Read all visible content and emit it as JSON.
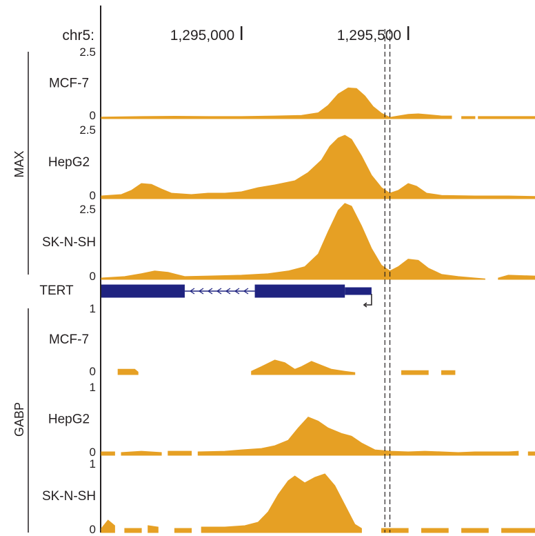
{
  "chart_data": {
    "type": "area",
    "chromosome": "chr5:",
    "coordinate_labels": [
      "1,295,000",
      "1,295,500"
    ],
    "coordinate_values": [
      1295000,
      1295500
    ],
    "x_range": [
      1294580,
      1295880
    ],
    "signal_color": "#e6a024",
    "gene_color": "#1f2380",
    "marker_lines": [
      1295430,
      1295445
    ],
    "groups": [
      {
        "name": "MAX",
        "ylim": [
          0,
          2.5
        ],
        "tracks": [
          {
            "cell_line": "MCF-7",
            "y_max_label": "2.5",
            "y_min_label": "0",
            "points": [
              [
                1294580,
                0.06
              ],
              [
                1294700,
                0.08
              ],
              [
                1294800,
                0.09
              ],
              [
                1294900,
                0.08
              ],
              [
                1295000,
                0.08
              ],
              [
                1295100,
                0.1
              ],
              [
                1295180,
                0.12
              ],
              [
                1295230,
                0.22
              ],
              [
                1295260,
                0.5
              ],
              [
                1295290,
                0.92
              ],
              [
                1295320,
                1.15
              ],
              [
                1295345,
                1.13
              ],
              [
                1295370,
                0.85
              ],
              [
                1295395,
                0.45
              ],
              [
                1295420,
                0.2
              ],
              [
                1295445,
                0.05
              ],
              [
                1295470,
                0.1
              ],
              [
                1295500,
                0.16
              ],
              [
                1295530,
                0.18
              ],
              [
                1295560,
                0.15
              ],
              [
                1295600,
                0.1
              ],
              [
                1295630,
                0.1
              ],
              [
                1295631,
                null
              ],
              [
                1295660,
                0.08
              ],
              [
                1295700,
                0.08
              ],
              [
                1295701,
                null
              ],
              [
                1295710,
                0.08
              ],
              [
                1295880,
                0.08
              ]
            ]
          },
          {
            "cell_line": "HepG2",
            "y_max_label": "2.5",
            "y_min_label": "0",
            "points": [
              [
                1294580,
                0.1
              ],
              [
                1294640,
                0.15
              ],
              [
                1294670,
                0.3
              ],
              [
                1294700,
                0.55
              ],
              [
                1294730,
                0.52
              ],
              [
                1294760,
                0.35
              ],
              [
                1294790,
                0.2
              ],
              [
                1294850,
                0.15
              ],
              [
                1294900,
                0.2
              ],
              [
                1294950,
                0.2
              ],
              [
                1295000,
                0.25
              ],
              [
                1295050,
                0.4
              ],
              [
                1295100,
                0.5
              ],
              [
                1295160,
                0.65
              ],
              [
                1295200,
                0.95
              ],
              [
                1295240,
                1.4
              ],
              [
                1295265,
                1.9
              ],
              [
                1295290,
                2.2
              ],
              [
                1295310,
                2.3
              ],
              [
                1295330,
                2.15
              ],
              [
                1295360,
                1.55
              ],
              [
                1295390,
                0.85
              ],
              [
                1295420,
                0.4
              ],
              [
                1295445,
                0.2
              ],
              [
                1295470,
                0.3
              ],
              [
                1295500,
                0.55
              ],
              [
                1295525,
                0.45
              ],
              [
                1295555,
                0.2
              ],
              [
                1295600,
                0.12
              ],
              [
                1295700,
                0.1
              ],
              [
                1295800,
                0.1
              ],
              [
                1295880,
                0.08
              ]
            ]
          },
          {
            "cell_line": "SK-N-SH",
            "y_max_label": "2.5",
            "y_min_label": "0",
            "points": [
              [
                1294580,
                0.05
              ],
              [
                1294650,
                0.1
              ],
              [
                1294700,
                0.2
              ],
              [
                1294740,
                0.3
              ],
              [
                1294780,
                0.25
              ],
              [
                1294830,
                0.1
              ],
              [
                1294900,
                0.12
              ],
              [
                1295000,
                0.15
              ],
              [
                1295080,
                0.2
              ],
              [
                1295140,
                0.3
              ],
              [
                1295190,
                0.45
              ],
              [
                1295230,
                0.9
              ],
              [
                1295260,
                1.7
              ],
              [
                1295290,
                2.45
              ],
              [
                1295310,
                2.7
              ],
              [
                1295330,
                2.6
              ],
              [
                1295360,
                1.9
              ],
              [
                1295390,
                1.1
              ],
              [
                1295420,
                0.5
              ],
              [
                1295445,
                0.3
              ],
              [
                1295470,
                0.45
              ],
              [
                1295500,
                0.72
              ],
              [
                1295530,
                0.68
              ],
              [
                1295560,
                0.4
              ],
              [
                1295600,
                0.18
              ],
              [
                1295650,
                0.1
              ],
              [
                1295700,
                0.05
              ],
              [
                1295730,
                0.02
              ],
              [
                1295731,
                null
              ],
              [
                1295770,
                0.05
              ],
              [
                1295800,
                0.15
              ],
              [
                1295880,
                0.12
              ]
            ]
          }
        ]
      },
      {
        "name": "GABP",
        "ylim": [
          0,
          1
        ],
        "tracks": [
          {
            "cell_line": "MCF-7",
            "y_max_label": "1",
            "y_min_label": "0",
            "points": [
              [
                1294620,
                null
              ],
              [
                1294630,
                0.08
              ],
              [
                1294680,
                0.08
              ],
              [
                1294690,
                0.04
              ],
              [
                1294691,
                null
              ],
              [
                1295030,
                0.05
              ],
              [
                1295060,
                0.12
              ],
              [
                1295100,
                0.22
              ],
              [
                1295130,
                0.18
              ],
              [
                1295160,
                0.08
              ],
              [
                1295180,
                0.12
              ],
              [
                1295210,
                0.2
              ],
              [
                1295240,
                0.14
              ],
              [
                1295270,
                0.08
              ],
              [
                1295310,
                0.05
              ],
              [
                1295340,
                0.03
              ],
              [
                1295341,
                null
              ],
              [
                1295480,
                0.06
              ],
              [
                1295560,
                0.06
              ],
              [
                1295561,
                null
              ],
              [
                1295600,
                0.06
              ],
              [
                1295640,
                0.06
              ]
            ]
          },
          {
            "cell_line": "HepG2",
            "y_max_label": "1",
            "y_min_label": "0",
            "points": [
              [
                1294580,
                0.05
              ],
              [
                1294620,
                0.05
              ],
              [
                1294621,
                null
              ],
              [
                1294640,
                0.04
              ],
              [
                1294700,
                0.06
              ],
              [
                1294760,
                0.04
              ],
              [
                1294761,
                null
              ],
              [
                1294780,
                0.06
              ],
              [
                1294850,
                0.06
              ],
              [
                1294851,
                null
              ],
              [
                1294870,
                0.05
              ],
              [
                1294950,
                0.06
              ],
              [
                1295000,
                0.08
              ],
              [
                1295060,
                0.1
              ],
              [
                1295100,
                0.14
              ],
              [
                1295140,
                0.22
              ],
              [
                1295170,
                0.4
              ],
              [
                1295200,
                0.56
              ],
              [
                1295230,
                0.5
              ],
              [
                1295260,
                0.4
              ],
              [
                1295300,
                0.32
              ],
              [
                1295330,
                0.28
              ],
              [
                1295360,
                0.18
              ],
              [
                1295400,
                0.08
              ],
              [
                1295450,
                0.06
              ],
              [
                1295500,
                0.05
              ],
              [
                1295550,
                0.06
              ],
              [
                1295600,
                0.05
              ],
              [
                1295650,
                0.04
              ],
              [
                1295700,
                0.05
              ],
              [
                1295750,
                0.05
              ],
              [
                1295800,
                0.05
              ],
              [
                1295830,
                0.06
              ],
              [
                1295831,
                null
              ],
              [
                1295860,
                0.05
              ],
              [
                1295880,
                0.05
              ]
            ]
          },
          {
            "cell_line": "SK-N-SH",
            "y_max_label": "1",
            "y_min_label": "0",
            "points": [
              [
                1294580,
                0.06
              ],
              [
                1294600,
                0.18
              ],
              [
                1294620,
                0.1
              ],
              [
                1294621,
                null
              ],
              [
                1294650,
                0.06
              ],
              [
                1294700,
                0.06
              ],
              [
                1294701,
                null
              ],
              [
                1294720,
                0.1
              ],
              [
                1294750,
                0.08
              ],
              [
                1294751,
                null
              ],
              [
                1294800,
                0.06
              ],
              [
                1294850,
                0.06
              ],
              [
                1294851,
                null
              ],
              [
                1294880,
                0.08
              ],
              [
                1294950,
                0.08
              ],
              [
                1295010,
                0.1
              ],
              [
                1295050,
                0.15
              ],
              [
                1295080,
                0.3
              ],
              [
                1295110,
                0.55
              ],
              [
                1295140,
                0.75
              ],
              [
                1295160,
                0.82
              ],
              [
                1295190,
                0.72
              ],
              [
                1295220,
                0.8
              ],
              [
                1295250,
                0.85
              ],
              [
                1295280,
                0.68
              ],
              [
                1295310,
                0.4
              ],
              [
                1295340,
                0.12
              ],
              [
                1295360,
                0.06
              ],
              [
                1295361,
                null
              ],
              [
                1295420,
                0.06
              ],
              [
                1295500,
                0.06
              ],
              [
                1295501,
                null
              ],
              [
                1295540,
                0.06
              ],
              [
                1295620,
                0.06
              ],
              [
                1295621,
                null
              ],
              [
                1295660,
                0.06
              ],
              [
                1295740,
                0.06
              ],
              [
                1295741,
                null
              ],
              [
                1295780,
                0.06
              ],
              [
                1295880,
                0.06
              ]
            ]
          }
        ]
      }
    ],
    "gene": {
      "name": "TERT",
      "exons": [
        [
          1294580,
          1294830
        ],
        [
          1295040,
          1295310
        ],
        [
          1295310,
          1295390
        ]
      ],
      "tss": 1295390
    }
  }
}
